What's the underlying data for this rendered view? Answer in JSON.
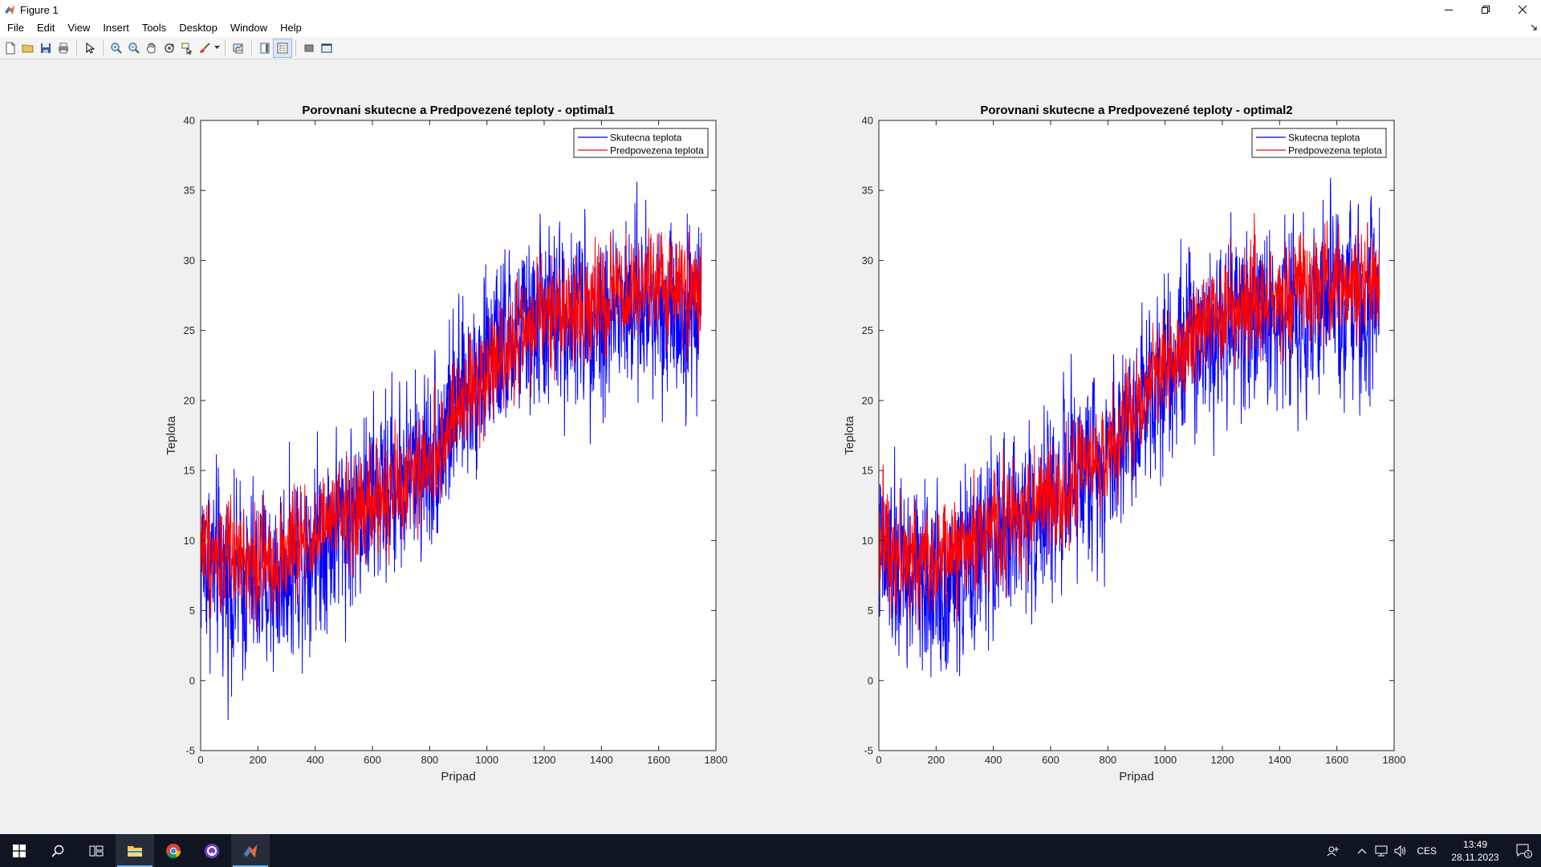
{
  "window": {
    "title": "Figure 1"
  },
  "menu": [
    "File",
    "Edit",
    "View",
    "Insert",
    "Tools",
    "Desktop",
    "Window",
    "Help"
  ],
  "toolbar_icons": [
    "new-figure-icon",
    "open-file-icon",
    "save-icon",
    "print-icon",
    "select-arrow-icon",
    "zoom-in-icon",
    "zoom-out-icon",
    "pan-hand-icon",
    "rotate-3d-icon",
    "data-cursor-icon",
    "brush-icon",
    "link-plot-icon",
    "colorbar-icon",
    "legend-icon",
    "hide-plot-tools-icon",
    "show-plot-tools-icon"
  ],
  "taskbar": {
    "language": "CES",
    "time": "13:49",
    "date": "28.11.2023",
    "notification_count": "1"
  },
  "colors": {
    "actual": "#0000ff",
    "predicted": "#ff0000"
  },
  "chart_data": [
    {
      "type": "line",
      "title": "Porovnani skutecne a Predpovezené teploty - optimal1",
      "xlabel": "Pripad",
      "ylabel": "Teplota",
      "xlim": [
        0,
        1800
      ],
      "ylim": [
        -5,
        40
      ],
      "xticks": [
        0,
        200,
        400,
        600,
        800,
        1000,
        1200,
        1400,
        1600,
        1800
      ],
      "yticks": [
        -5,
        0,
        5,
        10,
        15,
        20,
        25,
        30,
        35,
        40
      ],
      "grid": false,
      "legend": "top-right",
      "n_points": 1750,
      "series": [
        {
          "name": "Skutecna teplota",
          "color": "#0000ff",
          "trend_x": [
            0,
            100,
            250,
            400,
            600,
            800,
            1000,
            1200,
            1400,
            1600,
            1750
          ],
          "trend_y": [
            9,
            7,
            7,
            10,
            13,
            16,
            23,
            26,
            26,
            27,
            26
          ],
          "noise": 6,
          "range": [
            -3.2,
            37.5
          ]
        },
        {
          "name": "Predpovezena teplota",
          "color": "#ff0000",
          "trend_x": [
            0,
            100,
            250,
            400,
            600,
            800,
            1000,
            1200,
            1400,
            1600,
            1750
          ],
          "trend_y": [
            10,
            8.5,
            8.5,
            10.5,
            12.5,
            15.5,
            22.5,
            26,
            27,
            28,
            28
          ],
          "noise": 3.5,
          "range": [
            2.5,
            35
          ]
        }
      ]
    },
    {
      "type": "line",
      "title": "Porovnani skutecne a Predpovezené teploty - optimal2",
      "xlabel": "Pripad",
      "ylabel": "Teplota",
      "xlim": [
        0,
        1800
      ],
      "ylim": [
        -5,
        40
      ],
      "xticks": [
        0,
        200,
        400,
        600,
        800,
        1000,
        1200,
        1400,
        1600,
        1800
      ],
      "yticks": [
        -5,
        0,
        5,
        10,
        15,
        20,
        25,
        30,
        35,
        40
      ],
      "grid": false,
      "legend": "top-right",
      "n_points": 1750,
      "series": [
        {
          "name": "Skutecna teplota",
          "color": "#0000ff",
          "trend_x": [
            0,
            100,
            250,
            400,
            600,
            800,
            1000,
            1200,
            1400,
            1600,
            1750
          ],
          "trend_y": [
            9,
            7,
            7,
            10,
            13,
            16,
            23,
            26,
            26,
            27,
            26
          ],
          "noise": 6,
          "range": [
            -3.2,
            37.5
          ]
        },
        {
          "name": "Predpovezena teplota",
          "color": "#ff0000",
          "trend_x": [
            0,
            100,
            250,
            400,
            600,
            800,
            1000,
            1200,
            1400,
            1600,
            1750
          ],
          "trend_y": [
            10.5,
            8.5,
            9,
            11,
            13,
            16,
            23,
            26.5,
            27.5,
            28.5,
            28
          ],
          "noise": 3.5,
          "range": [
            2,
            34.5
          ]
        }
      ]
    }
  ]
}
